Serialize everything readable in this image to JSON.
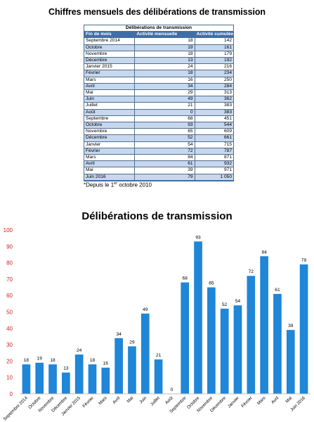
{
  "table": {
    "title": "Chiffres mensuels des délibérations de transmission",
    "group_header": "Délibérations de transmission",
    "columns": [
      "Fin de mois",
      "Activité mensuelle",
      "Activité cumulée*"
    ],
    "rows": [
      [
        "Septembre 2014",
        "18",
        "142"
      ],
      [
        "Octobre",
        "19",
        "161"
      ],
      [
        "Novembre",
        "18",
        "179"
      ],
      [
        "Décembre",
        "13",
        "192"
      ],
      [
        "Janvier 2015",
        "24",
        "216"
      ],
      [
        "Février",
        "18",
        "234"
      ],
      [
        "Mars",
        "16",
        "250"
      ],
      [
        "Avril",
        "34",
        "284"
      ],
      [
        "Mai",
        "29",
        "313"
      ],
      [
        "Juin",
        "49",
        "362"
      ],
      [
        "Juillet",
        "21",
        "383"
      ],
      [
        "Août",
        "0",
        "383"
      ],
      [
        "Septembre",
        "68",
        "451"
      ],
      [
        "Octobre",
        "93",
        "544"
      ],
      [
        "Novembre",
        "65",
        "609"
      ],
      [
        "Décembre",
        "52",
        "661"
      ],
      [
        "Janvier",
        "54",
        "715"
      ],
      [
        "Février",
        "72",
        "787"
      ],
      [
        "Mars",
        "84",
        "871"
      ],
      [
        "Avril",
        "61",
        "932"
      ],
      [
        "Mai",
        "39",
        "971"
      ],
      [
        "Juin 2016",
        "79",
        "1 050"
      ]
    ],
    "footnote_prefix": "*Depuis le 1",
    "footnote_sup": "er",
    "footnote_suffix": " octobre 2010"
  },
  "chart_data": {
    "type": "bar",
    "title": "Délibérations de transmission",
    "categories": [
      "Septembre 2014",
      "Octobre",
      "Novembre",
      "Décembre",
      "Janvier 2015",
      "Février",
      "Mars",
      "Avril",
      "Mai",
      "Juin",
      "Juillet",
      "Août",
      "Septembre",
      "Octobre",
      "Novembre",
      "Décembre",
      "Janvier",
      "Février",
      "Mars",
      "Avril",
      "Mai",
      "Juin 2016"
    ],
    "values": [
      18,
      19,
      18,
      13,
      24,
      18,
      16,
      34,
      29,
      49,
      21,
      0,
      68,
      93,
      65,
      52,
      54,
      72,
      84,
      61,
      39,
      79
    ],
    "ylim": [
      0,
      100
    ],
    "yticks": [
      0,
      10,
      20,
      30,
      40,
      50,
      60,
      70,
      80,
      90,
      100
    ],
    "grid": false,
    "legend": "none",
    "bar_color": "#1f86d8",
    "ytick_color": "#cc2222"
  }
}
